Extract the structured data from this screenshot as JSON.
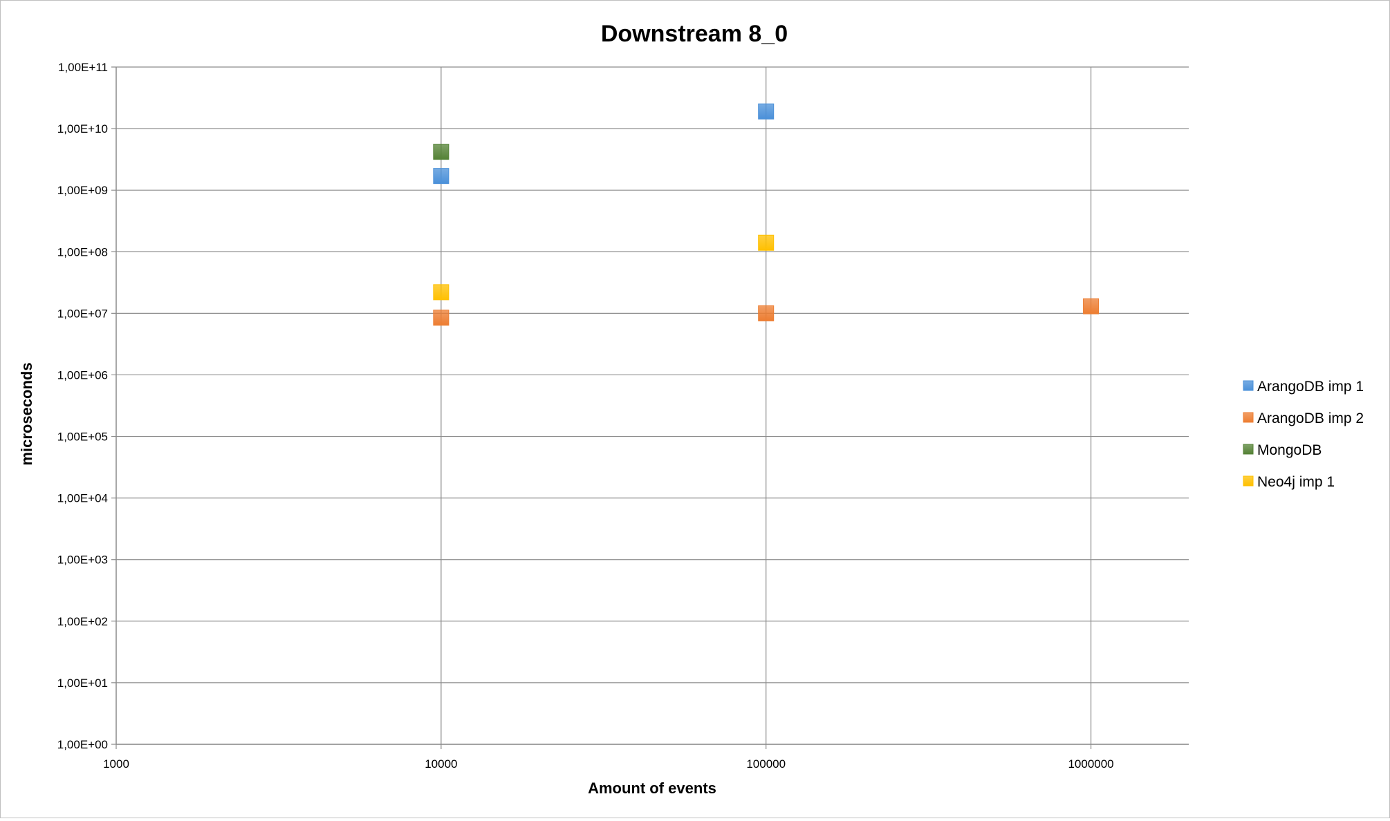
{
  "chart_data": {
    "type": "scatter",
    "title": "Downstream 8_0",
    "xlabel": "Amount of events",
    "ylabel": "microseconds",
    "x_scale": "log",
    "y_scale": "log",
    "xlim": [
      1000,
      2000000
    ],
    "ylim": [
      1,
      100000000000
    ],
    "x_ticks": [
      {
        "value": 1000,
        "label": "1000"
      },
      {
        "value": 10000,
        "label": "10000"
      },
      {
        "value": 100000,
        "label": "100000"
      },
      {
        "value": 1000000,
        "label": "1000000"
      }
    ],
    "y_ticks": [
      {
        "value": 1,
        "label": "1,00E+00"
      },
      {
        "value": 10,
        "label": "1,00E+01"
      },
      {
        "value": 100,
        "label": "1,00E+02"
      },
      {
        "value": 1000,
        "label": "1,00E+03"
      },
      {
        "value": 10000,
        "label": "1,00E+04"
      },
      {
        "value": 100000,
        "label": "1,00E+05"
      },
      {
        "value": 1000000,
        "label": "1,00E+06"
      },
      {
        "value": 10000000,
        "label": "1,00E+07"
      },
      {
        "value": 100000000,
        "label": "1,00E+08"
      },
      {
        "value": 1000000000,
        "label": "1,00E+09"
      },
      {
        "value": 10000000000,
        "label": "1,00E+10"
      },
      {
        "value": 100000000000,
        "label": "1,00E+11"
      }
    ],
    "grid": true,
    "legend_position": "right",
    "series": [
      {
        "name": "ArangoDB imp 1",
        "color": "#4a90d9",
        "points": [
          [
            10000,
            1700000000
          ],
          [
            100000,
            19000000000
          ]
        ]
      },
      {
        "name": "ArangoDB imp 2",
        "color": "#ed7d31",
        "points": [
          [
            10000,
            8500000
          ],
          [
            100000,
            10000000
          ],
          [
            1000000,
            13000000
          ]
        ]
      },
      {
        "name": "MongoDB",
        "color": "#548235",
        "points": [
          [
            10000,
            4200000000
          ]
        ]
      },
      {
        "name": "Neo4j imp 1",
        "color": "#ffc000",
        "points": [
          [
            10000,
            22000000
          ],
          [
            100000,
            140000000
          ]
        ]
      }
    ]
  }
}
